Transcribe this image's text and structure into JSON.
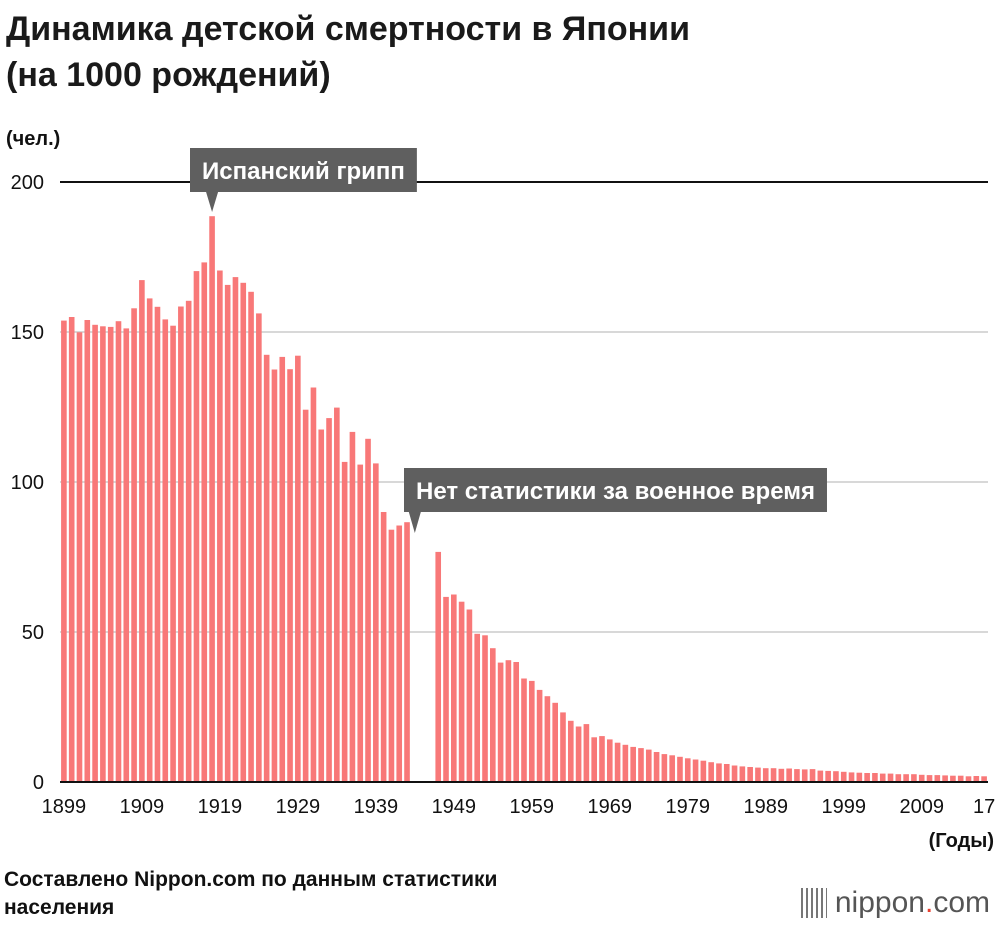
{
  "header": {
    "title_line1": "Динамика детской смертности в Японии",
    "title_line2": "(на 1000 рождений)"
  },
  "footer": {
    "source_line1": "Составлено Nippon.com по данным статистики",
    "source_line2": "населения",
    "logo_text": "nippon",
    "logo_dot": ".",
    "logo_suffix": "com"
  },
  "chart_data": {
    "type": "bar",
    "ylabel": "(чел.)",
    "xlabel": "(Годы)",
    "ylim": [
      0,
      200
    ],
    "y_ticks": [
      "0",
      "50",
      "100",
      "150",
      "200"
    ],
    "x_tick_labels": [
      "1899",
      "1909",
      "1919",
      "1929",
      "1939",
      "1949",
      "1959",
      "1969",
      "1979",
      "1989",
      "1999",
      "2009",
      "17"
    ],
    "gridlines": true,
    "bar_color": "#f87878",
    "annotations": [
      {
        "text": "Испанский грипп",
        "year": 1918
      },
      {
        "text": "Нет статистики за военное время",
        "year": 1944
      }
    ],
    "series": [
      {
        "values": [
          {
            "x": 1899,
            "y": 153.8
          },
          {
            "x": 1900,
            "y": 155.0
          },
          {
            "x": 1901,
            "y": 149.9
          },
          {
            "x": 1902,
            "y": 154.0
          },
          {
            "x": 1903,
            "y": 152.4
          },
          {
            "x": 1904,
            "y": 151.9
          },
          {
            "x": 1905,
            "y": 151.7
          },
          {
            "x": 1906,
            "y": 153.6
          },
          {
            "x": 1907,
            "y": 151.2
          },
          {
            "x": 1908,
            "y": 157.9
          },
          {
            "x": 1909,
            "y": 167.3
          },
          {
            "x": 1910,
            "y": 161.2
          },
          {
            "x": 1911,
            "y": 158.4
          },
          {
            "x": 1912,
            "y": 154.2
          },
          {
            "x": 1913,
            "y": 152.1
          },
          {
            "x": 1914,
            "y": 158.5
          },
          {
            "x": 1915,
            "y": 160.4
          },
          {
            "x": 1916,
            "y": 170.3
          },
          {
            "x": 1917,
            "y": 173.2
          },
          {
            "x": 1918,
            "y": 188.6
          },
          {
            "x": 1919,
            "y": 170.5
          },
          {
            "x": 1920,
            "y": 165.7
          },
          {
            "x": 1921,
            "y": 168.3
          },
          {
            "x": 1922,
            "y": 166.4
          },
          {
            "x": 1923,
            "y": 163.4
          },
          {
            "x": 1924,
            "y": 156.2
          },
          {
            "x": 1925,
            "y": 142.4
          },
          {
            "x": 1926,
            "y": 137.5
          },
          {
            "x": 1927,
            "y": 141.7
          },
          {
            "x": 1928,
            "y": 137.6
          },
          {
            "x": 1929,
            "y": 142.1
          },
          {
            "x": 1930,
            "y": 124.1
          },
          {
            "x": 1931,
            "y": 131.5
          },
          {
            "x": 1932,
            "y": 117.5
          },
          {
            "x": 1933,
            "y": 121.3
          },
          {
            "x": 1934,
            "y": 124.8
          },
          {
            "x": 1935,
            "y": 106.7
          },
          {
            "x": 1936,
            "y": 116.7
          },
          {
            "x": 1937,
            "y": 105.8
          },
          {
            "x": 1938,
            "y": 114.4
          },
          {
            "x": 1939,
            "y": 106.2
          },
          {
            "x": 1940,
            "y": 90.0
          },
          {
            "x": 1941,
            "y": 84.1
          },
          {
            "x": 1942,
            "y": 85.5
          },
          {
            "x": 1943,
            "y": 86.6
          },
          {
            "x": 1947,
            "y": 76.7
          },
          {
            "x": 1948,
            "y": 61.7
          },
          {
            "x": 1949,
            "y": 62.5
          },
          {
            "x": 1950,
            "y": 60.1
          },
          {
            "x": 1951,
            "y": 57.5
          },
          {
            "x": 1952,
            "y": 49.4
          },
          {
            "x": 1953,
            "y": 48.9
          },
          {
            "x": 1954,
            "y": 44.6
          },
          {
            "x": 1955,
            "y": 39.8
          },
          {
            "x": 1956,
            "y": 40.6
          },
          {
            "x": 1957,
            "y": 40.0
          },
          {
            "x": 1958,
            "y": 34.5
          },
          {
            "x": 1959,
            "y": 33.7
          },
          {
            "x": 1960,
            "y": 30.7
          },
          {
            "x": 1961,
            "y": 28.6
          },
          {
            "x": 1962,
            "y": 26.4
          },
          {
            "x": 1963,
            "y": 23.2
          },
          {
            "x": 1964,
            "y": 20.4
          },
          {
            "x": 1965,
            "y": 18.5
          },
          {
            "x": 1966,
            "y": 19.3
          },
          {
            "x": 1967,
            "y": 14.9
          },
          {
            "x": 1968,
            "y": 15.3
          },
          {
            "x": 1969,
            "y": 14.2
          },
          {
            "x": 1970,
            "y": 13.1
          },
          {
            "x": 1971,
            "y": 12.4
          },
          {
            "x": 1972,
            "y": 11.7
          },
          {
            "x": 1973,
            "y": 11.3
          },
          {
            "x": 1974,
            "y": 10.8
          },
          {
            "x": 1975,
            "y": 10.0
          },
          {
            "x": 1976,
            "y": 9.3
          },
          {
            "x": 1977,
            "y": 8.9
          },
          {
            "x": 1978,
            "y": 8.4
          },
          {
            "x": 1979,
            "y": 7.9
          },
          {
            "x": 1980,
            "y": 7.5
          },
          {
            "x": 1981,
            "y": 7.1
          },
          {
            "x": 1982,
            "y": 6.6
          },
          {
            "x": 1983,
            "y": 6.2
          },
          {
            "x": 1984,
            "y": 6.0
          },
          {
            "x": 1985,
            "y": 5.5
          },
          {
            "x": 1986,
            "y": 5.2
          },
          {
            "x": 1987,
            "y": 5.0
          },
          {
            "x": 1988,
            "y": 4.8
          },
          {
            "x": 1989,
            "y": 4.6
          },
          {
            "x": 1990,
            "y": 4.6
          },
          {
            "x": 1991,
            "y": 4.4
          },
          {
            "x": 1992,
            "y": 4.5
          },
          {
            "x": 1993,
            "y": 4.3
          },
          {
            "x": 1994,
            "y": 4.2
          },
          {
            "x": 1995,
            "y": 4.3
          },
          {
            "x": 1996,
            "y": 3.8
          },
          {
            "x": 1997,
            "y": 3.7
          },
          {
            "x": 1998,
            "y": 3.6
          },
          {
            "x": 1999,
            "y": 3.4
          },
          {
            "x": 2000,
            "y": 3.2
          },
          {
            "x": 2001,
            "y": 3.1
          },
          {
            "x": 2002,
            "y": 3.0
          },
          {
            "x": 2003,
            "y": 3.0
          },
          {
            "x": 2004,
            "y": 2.8
          },
          {
            "x": 2005,
            "y": 2.8
          },
          {
            "x": 2006,
            "y": 2.6
          },
          {
            "x": 2007,
            "y": 2.6
          },
          {
            "x": 2008,
            "y": 2.6
          },
          {
            "x": 2009,
            "y": 2.4
          },
          {
            "x": 2010,
            "y": 2.3
          },
          {
            "x": 2011,
            "y": 2.3
          },
          {
            "x": 2012,
            "y": 2.2
          },
          {
            "x": 2013,
            "y": 2.1
          },
          {
            "x": 2014,
            "y": 2.1
          },
          {
            "x": 2015,
            "y": 1.9
          },
          {
            "x": 2016,
            "y": 2.0
          },
          {
            "x": 2017,
            "y": 1.9
          }
        ]
      }
    ]
  }
}
